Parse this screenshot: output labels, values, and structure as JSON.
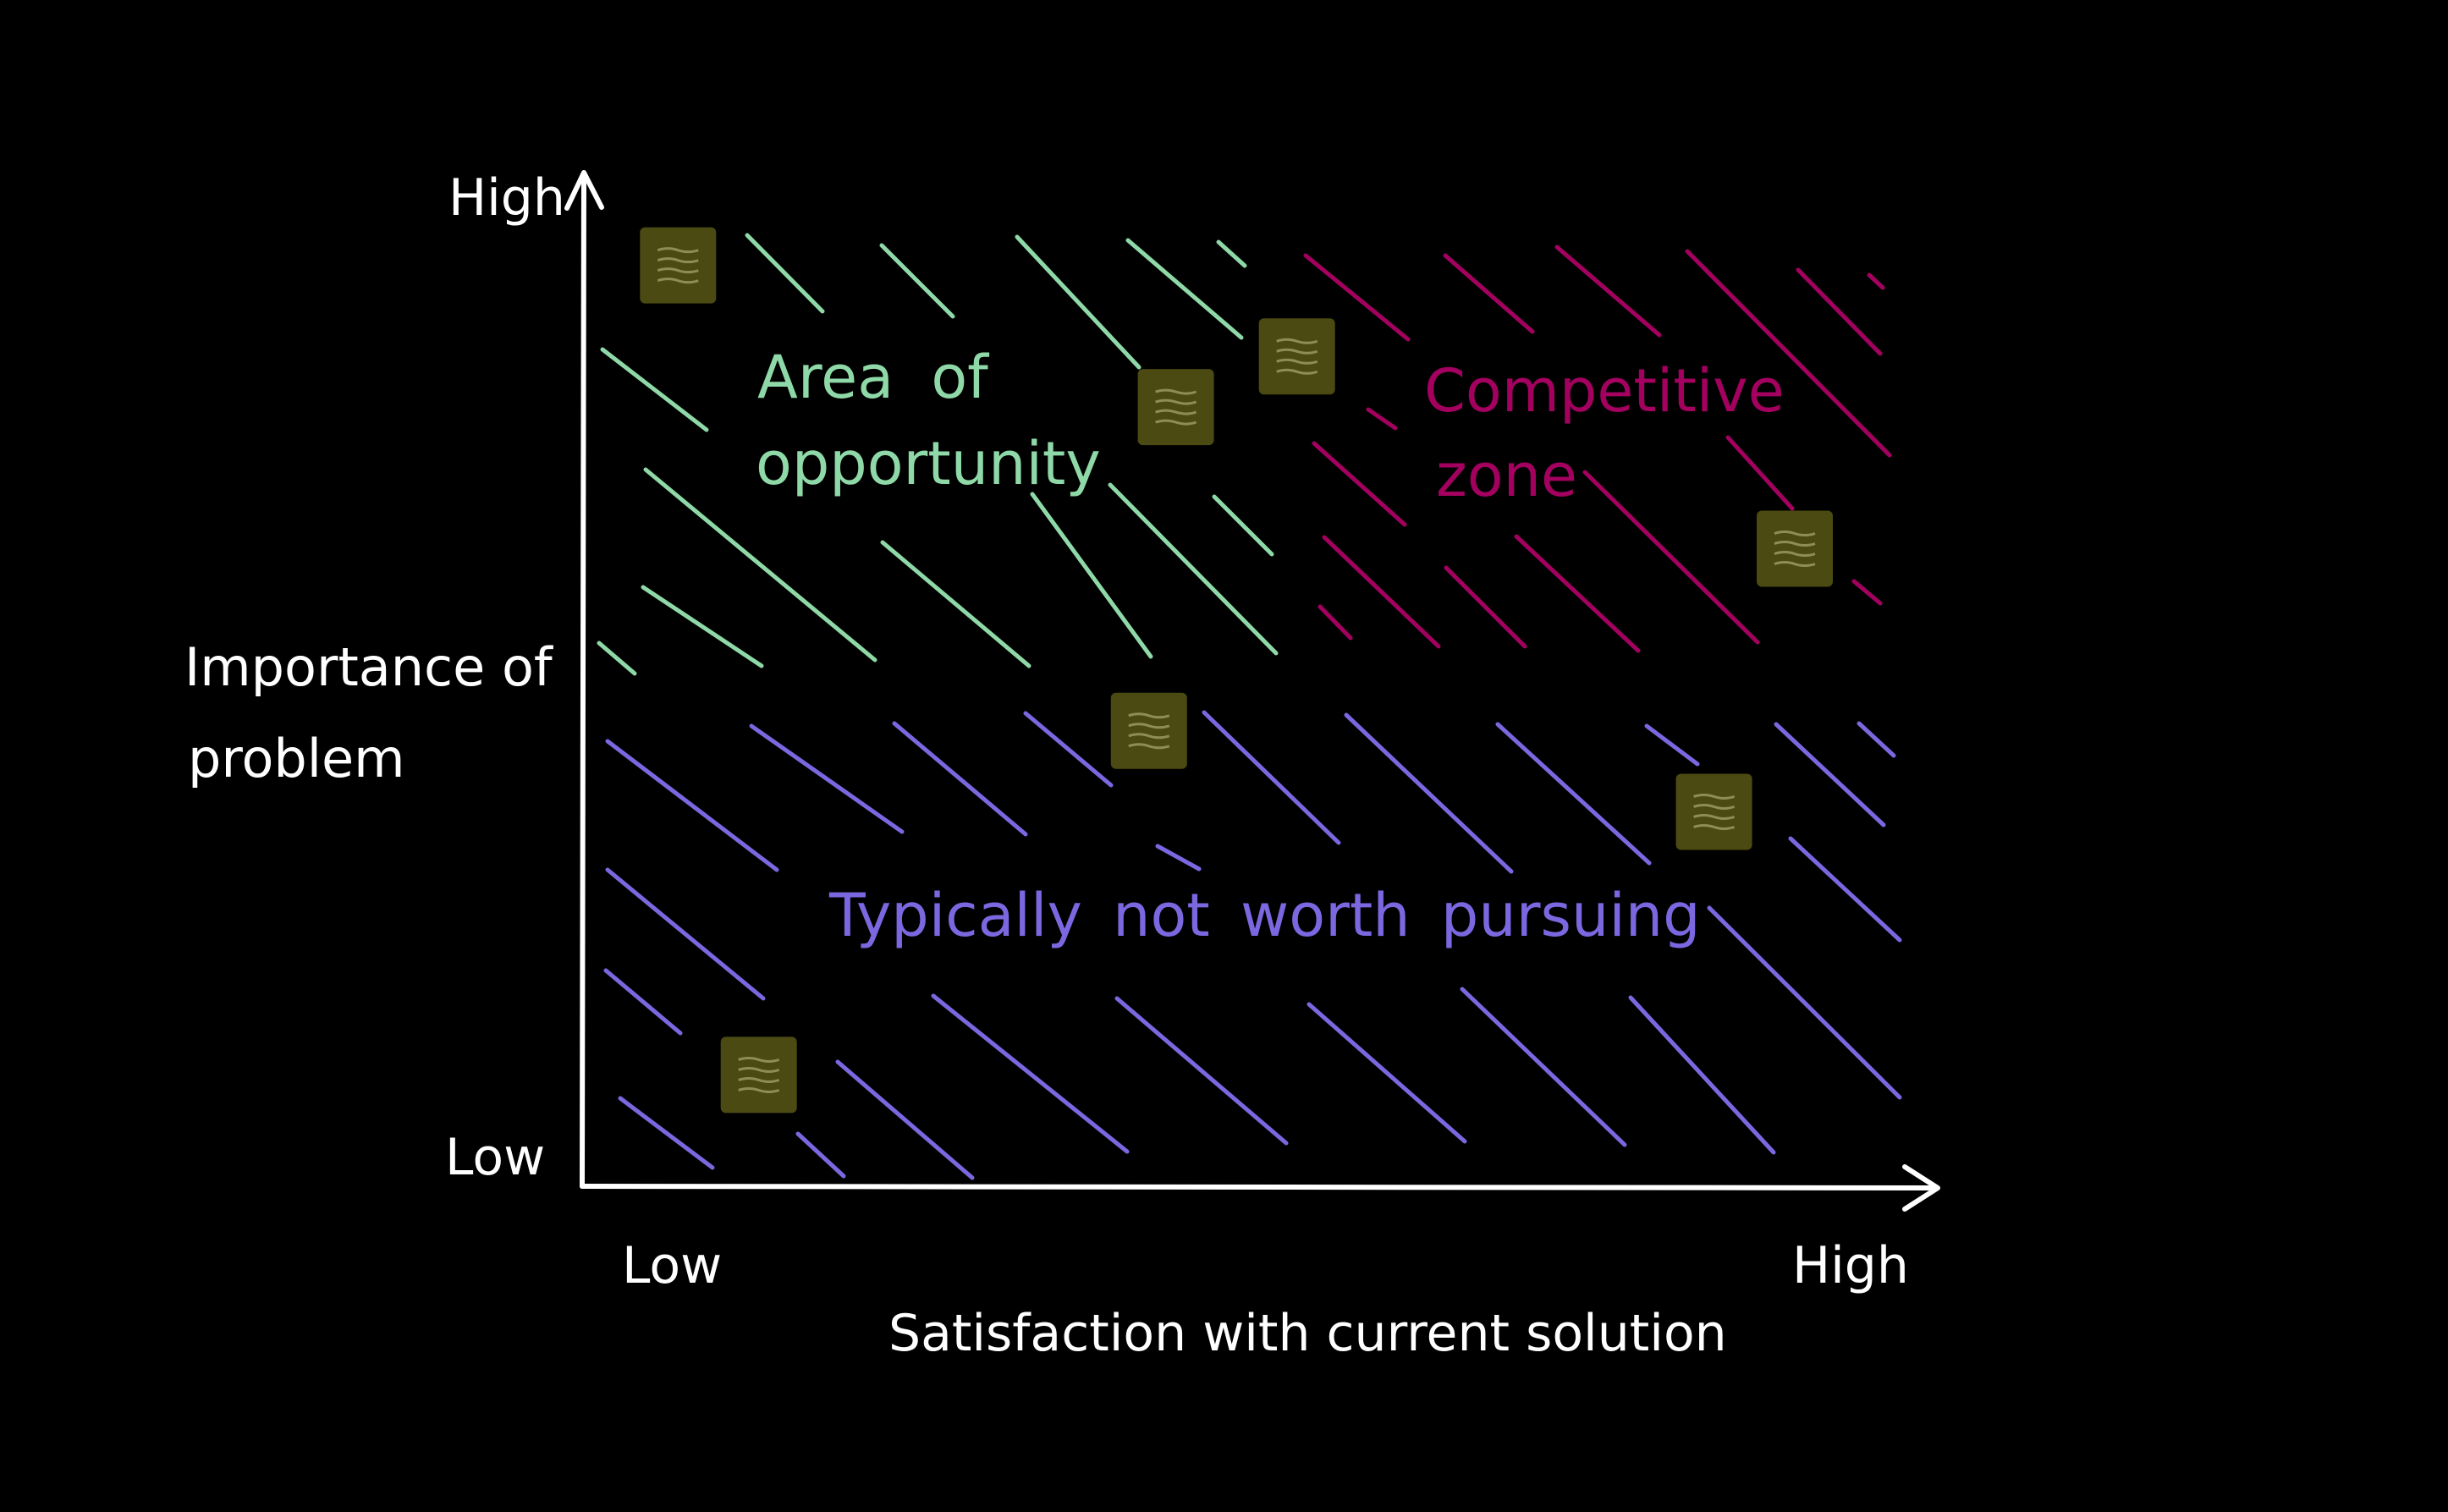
{
  "axes": {
    "y_label_line1": "Importance of",
    "y_label_line2": "problem",
    "y_high": "High",
    "y_low": "Low",
    "x_label": "Satisfaction with current solution",
    "x_low": "Low",
    "x_high": "High"
  },
  "zones": {
    "opportunity_line1": "Area of",
    "opportunity_line2": "opportunity",
    "competitive_line1": "Competitive",
    "competitive_line2": "zone",
    "not_worth": "Typically not worth pursuing"
  },
  "colors": {
    "background": "#000000",
    "axis": "#ffffff",
    "opportunity": "#8fd9a8",
    "competitive": "#a3005f",
    "not_worth": "#7b68e0",
    "sticky_fill": "#4a4a12",
    "sticky_lines": "#8d8d55"
  },
  "sticky_notes": [
    {
      "id": "note-1",
      "importance": 0.91,
      "satisfaction": 0.07
    },
    {
      "id": "note-2",
      "importance": 0.77,
      "satisfaction": 0.44
    },
    {
      "id": "note-3",
      "importance": 0.82,
      "satisfaction": 0.53
    },
    {
      "id": "note-4",
      "importance": 0.63,
      "satisfaction": 0.9
    },
    {
      "id": "note-5",
      "importance": 0.45,
      "satisfaction": 0.42
    },
    {
      "id": "note-6",
      "importance": 0.37,
      "satisfaction": 0.84
    },
    {
      "id": "note-7",
      "importance": 0.11,
      "satisfaction": 0.13
    }
  ]
}
